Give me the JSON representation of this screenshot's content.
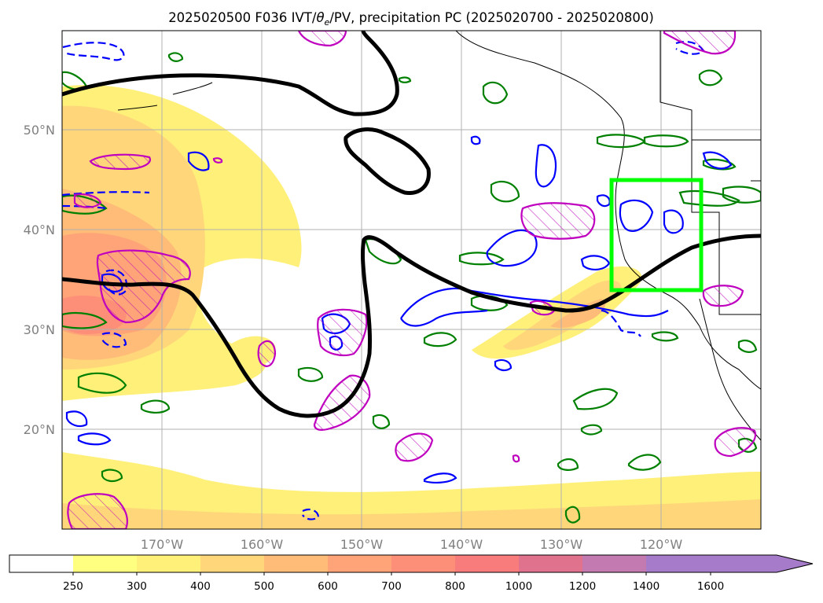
{
  "title": {
    "prefix": "2025020500 F036 IVT/",
    "theta": "θ",
    "theta_sub": "e",
    "suffix": "/PV, precipitation PC (2025020700 - 2025020800)"
  },
  "map": {
    "projection": "PlateCarree",
    "lon_range": [
      -180,
      -110
    ],
    "lat_range": [
      10,
      60
    ],
    "gridlines": true,
    "xticks": [
      {
        "lon": -170,
        "label": "170°W"
      },
      {
        "lon": -160,
        "label": "160°W"
      },
      {
        "lon": -150,
        "label": "150°W"
      },
      {
        "lon": -140,
        "label": "140°W"
      },
      {
        "lon": -130,
        "label": "130°W"
      },
      {
        "lon": -120,
        "label": "120°W"
      }
    ],
    "yticks": [
      {
        "lat": 20,
        "label": "20°N"
      },
      {
        "lat": 30,
        "label": "30°N"
      },
      {
        "lat": 40,
        "label": "40°N"
      },
      {
        "lat": 50,
        "label": "50°N"
      }
    ],
    "target_box": {
      "lon_min": -125,
      "lon_max": -116,
      "lat_min": 34,
      "lat_max": 45,
      "color": "#00ff00"
    }
  },
  "colorbar": {
    "extend": "max",
    "levels": [
      "250",
      "300",
      "400",
      "500",
      "600",
      "700",
      "800",
      "1000",
      "1200",
      "1400",
      "1600"
    ],
    "colors": [
      "#ffffff",
      "#ffff80",
      "#fff079",
      "#ffd67a",
      "#ffbc78",
      "#ffa478",
      "#fd8e78",
      "#f97c7c",
      "#e0728e",
      "#c27ab0",
      "#a67cca"
    ]
  },
  "layers": {
    "ivt_colors": [
      "#fff079",
      "#ffd67a",
      "#ffbc78",
      "#ffa478",
      "#fd8e78"
    ],
    "pv_color": "#000000",
    "theta_e_pos_color": "#0000ff",
    "theta_e_neg_color": "#0000ff",
    "precip_pc_color": "#bf00bf",
    "green_contour_color": "#008000"
  }
}
